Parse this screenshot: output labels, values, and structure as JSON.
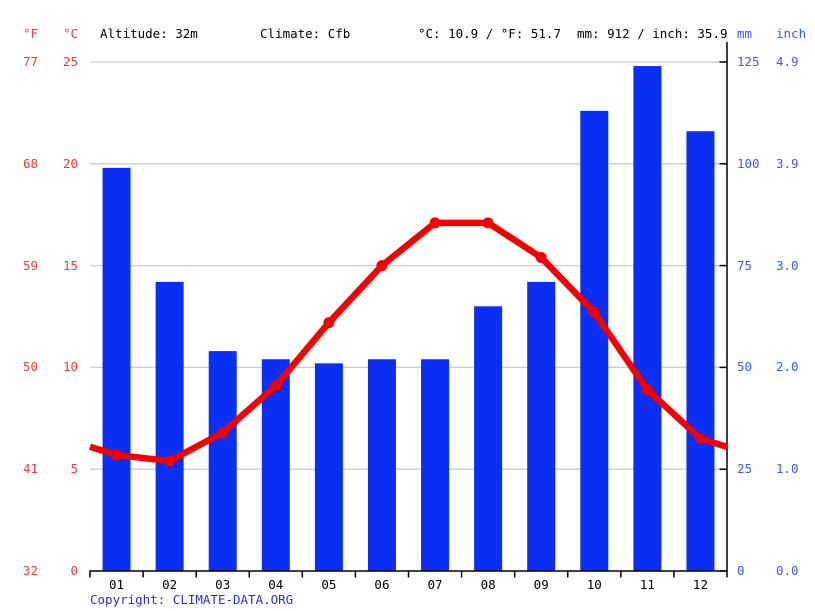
{
  "header": {
    "fahrenheit_unit": "°F",
    "celsius_unit": "°C",
    "altitude": "Altitude: 32m",
    "climate": "Climate: Cfb",
    "avg_temp": "°C: 10.9 / °F: 51.7",
    "annual_precip": "mm: 912 / inch: 35.9",
    "mm_unit": "mm",
    "inch_unit": "inch"
  },
  "axes": {
    "fahrenheit_labels": [
      "77",
      "68",
      "59",
      "50",
      "41",
      "32"
    ],
    "celsius_labels": [
      "25",
      "20",
      "15",
      "10",
      "5",
      "0"
    ],
    "mm_labels": [
      "125",
      "100",
      "75",
      "50",
      "25",
      "0"
    ],
    "inch_labels": [
      "4.9",
      "3.9",
      "3.0",
      "2.0",
      "1.0",
      "0.0"
    ]
  },
  "chart_data": {
    "type": "bar+line",
    "title": "Climate graph (climogram): monthly precipitation and temperature",
    "categories": [
      "01",
      "02",
      "03",
      "04",
      "05",
      "06",
      "07",
      "08",
      "09",
      "10",
      "11",
      "12"
    ],
    "series": [
      {
        "name": "Precipitation (mm)",
        "type": "bar",
        "axis": "right_mm",
        "values": [
          99,
          71,
          54,
          52,
          51,
          52,
          52,
          65,
          71,
          113,
          124,
          108
        ],
        "color": "#0a2ff2"
      },
      {
        "name": "Temperature (°C)",
        "type": "line",
        "axis": "left_c",
        "values": [
          5.7,
          5.4,
          6.8,
          9.1,
          12.2,
          15.0,
          17.1,
          17.1,
          15.4,
          12.7,
          8.9,
          6.5
        ],
        "edge_value": 6.1,
        "color": "#f50000"
      }
    ],
    "left_axis_range_c": [
      0,
      25
    ],
    "right_axis_range_mm": [
      0,
      125
    ],
    "grid": true,
    "legend_position": "none"
  },
  "colors": {
    "bar_blue": "#0a2ff2",
    "line_red": "#f50000",
    "temp_label_red": "#f43b3b",
    "precip_label_blue": "#3c5cf0",
    "copyright_blue": "#2e2ed4",
    "gridline_gray": "#cccccc",
    "axis_black": "#000000"
  },
  "copyright": {
    "label": "Copyright: ",
    "link": "CLIMATE-DATA.ORG"
  }
}
